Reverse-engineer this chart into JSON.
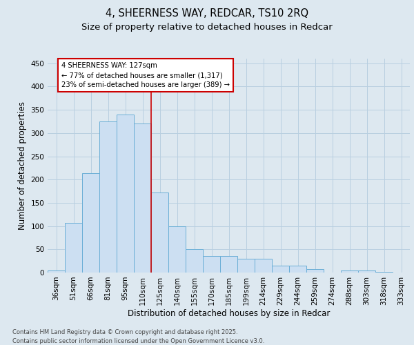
{
  "title1": "4, SHEERNESS WAY, REDCAR, TS10 2RQ",
  "title2": "Size of property relative to detached houses in Redcar",
  "xlabel": "Distribution of detached houses by size in Redcar",
  "ylabel": "Number of detached properties",
  "categories": [
    "36sqm",
    "51sqm",
    "66sqm",
    "81sqm",
    "95sqm",
    "110sqm",
    "125sqm",
    "140sqm",
    "155sqm",
    "170sqm",
    "185sqm",
    "199sqm",
    "214sqm",
    "229sqm",
    "244sqm",
    "259sqm",
    "274sqm",
    "288sqm",
    "303sqm",
    "318sqm",
    "333sqm"
  ],
  "values": [
    5,
    107,
    213,
    325,
    340,
    320,
    172,
    100,
    50,
    35,
    35,
    30,
    30,
    15,
    15,
    8,
    0,
    5,
    5,
    1,
    0
  ],
  "bar_color": "#ccdff2",
  "bar_edge_color": "#6aaed6",
  "grid_color": "#b8cfe0",
  "background_color": "#dde8f0",
  "annotation_line1": "4 SHEERNESS WAY: 127sqm",
  "annotation_line2": "← 77% of detached houses are smaller (1,317)",
  "annotation_line3": "23% of semi-detached houses are larger (389) →",
  "annotation_box_color": "#ffffff",
  "annotation_box_edge_color": "#cc0000",
  "marker_line_color": "#cc0000",
  "marker_line_index": 6,
  "ylim": [
    0,
    460
  ],
  "yticks": [
    0,
    50,
    100,
    150,
    200,
    250,
    300,
    350,
    400,
    450
  ],
  "footer": "Contains HM Land Registry data © Crown copyright and database right 2025.\nContains public sector information licensed under the Open Government Licence v3.0.",
  "title_fontsize": 10.5,
  "subtitle_fontsize": 9.5,
  "tick_fontsize": 7.5,
  "label_fontsize": 8.5,
  "footer_fontsize": 6.0
}
